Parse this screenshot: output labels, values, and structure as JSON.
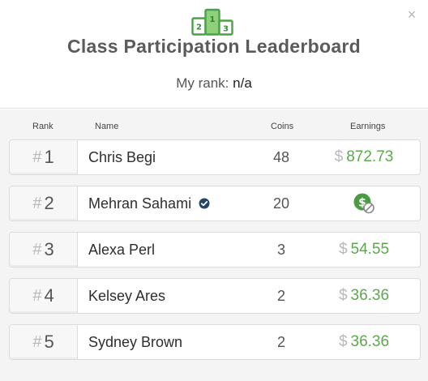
{
  "header": {
    "title": "Class Participation Leaderboard",
    "my_rank_label": "My rank:",
    "my_rank_value": "n/a",
    "close_label": "×",
    "podium_labels": [
      "2",
      "1",
      "3"
    ]
  },
  "columns": {
    "rank": "Rank",
    "name": "Name",
    "coins": "Coins",
    "earnings": "Earnings"
  },
  "rows": [
    {
      "hash": "#",
      "rank": "1",
      "name": "Chris Begi",
      "coins": "48",
      "currency": "$",
      "earnings": "872.73"
    },
    {
      "hash": "#",
      "rank": "2",
      "name": "Mehran Sahami",
      "coins": "20",
      "currency": "",
      "earnings": ""
    },
    {
      "hash": "#",
      "rank": "3",
      "name": "Alexa Perl",
      "coins": "3",
      "currency": "$",
      "earnings": "54.55"
    },
    {
      "hash": "#",
      "rank": "4",
      "name": "Kelsey Ares",
      "coins": "2",
      "currency": "$",
      "earnings": "36.36"
    },
    {
      "hash": "#",
      "rank": "5",
      "name": "Sydney Brown",
      "coins": "2",
      "currency": "$",
      "earnings": "36.36"
    }
  ],
  "icons": {
    "podium": "podium-icon",
    "verified": "verified-check-icon",
    "no_earnings": "no-money-icon",
    "close": "close-icon"
  },
  "colors": {
    "accent_green": "#5aaa4a",
    "verified_blue": "#26456b"
  }
}
